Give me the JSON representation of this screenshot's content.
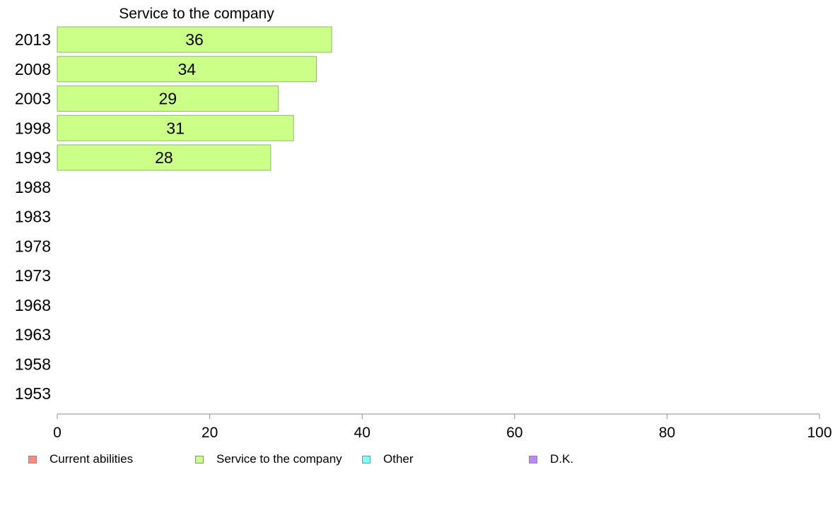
{
  "chart_data": {
    "type": "bar",
    "orientation": "horizontal",
    "title": "Service to the company",
    "categories": [
      "2013",
      "2008",
      "2003",
      "1998",
      "1993",
      "1988",
      "1983",
      "1978",
      "1973",
      "1968",
      "1963",
      "1958",
      "1953"
    ],
    "series": [
      {
        "name": "Service to the company",
        "color": "#ccff88",
        "values": [
          36,
          34,
          29,
          31,
          28,
          null,
          null,
          null,
          null,
          null,
          null,
          null,
          null
        ]
      }
    ],
    "xlim": [
      0,
      100
    ],
    "xticks": [
      "0",
      "20",
      "40",
      "60",
      "80",
      "100"
    ],
    "grid": false,
    "legend_position": "bottom"
  },
  "legend": [
    {
      "label": "Current abilities",
      "color": "#ff8a80"
    },
    {
      "label": "Service to the company",
      "color": "#ccff88"
    },
    {
      "label": "Other",
      "color": "#80ffff"
    },
    {
      "label": "D.K.",
      "color": "#bb88ff"
    }
  ]
}
